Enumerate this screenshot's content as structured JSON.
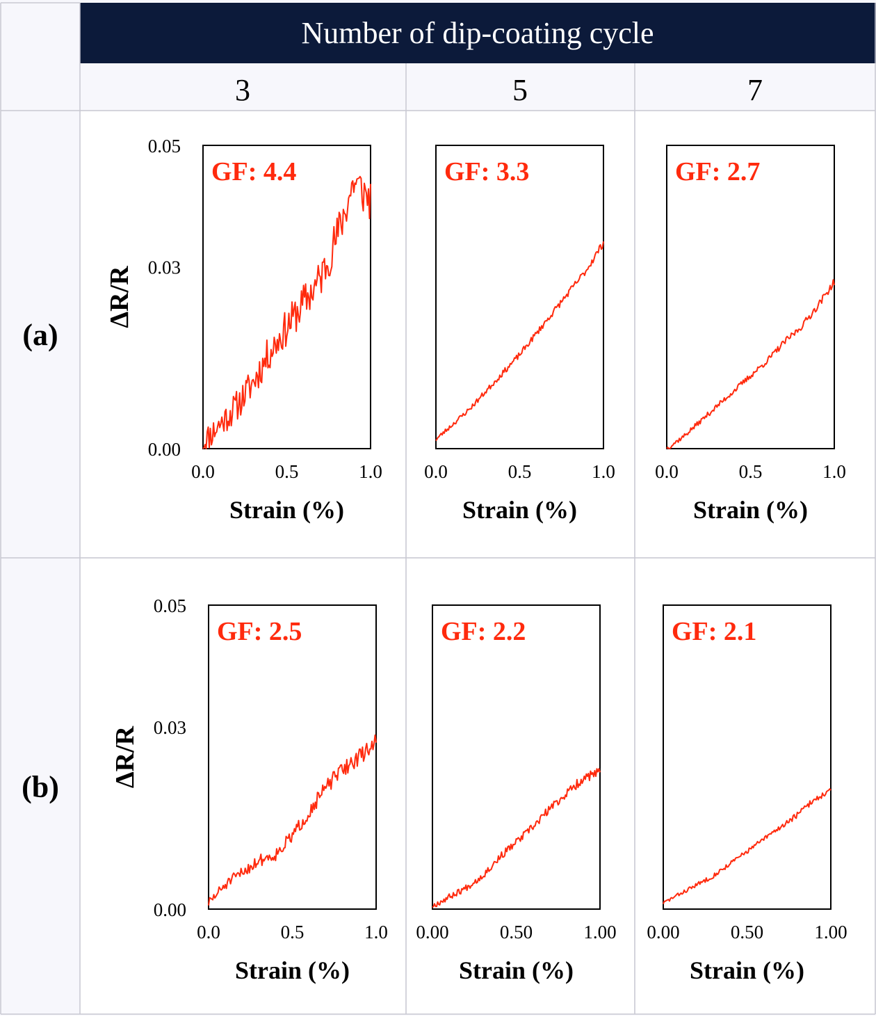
{
  "header": {
    "title": "Number of dip-coating cycle",
    "columns": [
      "3",
      "5",
      "7"
    ],
    "rows": [
      "(a)",
      "(b)"
    ]
  },
  "colors": {
    "header_band": "#0c1a3a",
    "cell_background": "#f7f7fc",
    "grid_line": "#c8c8d2",
    "series": "#ff2a0d",
    "gf_label": "#ff2a0d"
  },
  "chart_data": [
    {
      "type": "line",
      "row": "(a)",
      "column": "3",
      "annotation": "GF: 4.4",
      "xlabel": "Strain (%)",
      "ylabel": "ΔR/R",
      "xlim": [
        0,
        1
      ],
      "ylim": [
        0,
        0.05
      ],
      "xticks": [
        "0.0",
        "0.5",
        "1.0"
      ],
      "yticks": [
        "0.00",
        "0.03",
        "0.05"
      ],
      "noise": 0.0038,
      "seed": 11,
      "series": [
        {
          "x": [
            0,
            0.1,
            0.2,
            0.3,
            0.4,
            0.5,
            0.6,
            0.7,
            0.8,
            0.9,
            1.0
          ],
          "values": [
            0.001,
            0.004,
            0.007,
            0.011,
            0.016,
            0.02,
            0.024,
            0.028,
            0.035,
            0.044,
            0.041
          ]
        }
      ]
    },
    {
      "type": "line",
      "row": "(a)",
      "column": "5",
      "annotation": "GF: 3.3",
      "xlabel": "Strain (%)",
      "ylabel": "",
      "xlim": [
        0,
        1
      ],
      "ylim": [
        0,
        0.05
      ],
      "xticks": [
        "0.0",
        "0.5",
        "1.0"
      ],
      "yticks": [],
      "noise": 0.0006,
      "seed": 23,
      "series": [
        {
          "x": [
            0,
            0.1,
            0.2,
            0.3,
            0.4,
            0.5,
            0.6,
            0.7,
            0.8,
            0.9,
            1.0
          ],
          "values": [
            0.0015,
            0.004,
            0.0065,
            0.0095,
            0.0125,
            0.0155,
            0.019,
            0.0225,
            0.026,
            0.0295,
            0.034
          ]
        }
      ]
    },
    {
      "type": "line",
      "row": "(a)",
      "column": "7",
      "annotation": "GF: 2.7",
      "xlabel": "Strain (%)",
      "ylabel": "",
      "xlim": [
        0,
        1
      ],
      "ylim": [
        0,
        0.05
      ],
      "xticks": [
        "0.0",
        "0.5",
        "1.0"
      ],
      "yticks": [],
      "noise": 0.0006,
      "seed": 37,
      "series": [
        {
          "x": [
            0,
            0.1,
            0.2,
            0.3,
            0.4,
            0.5,
            0.6,
            0.7,
            0.8,
            0.9,
            1.0
          ],
          "values": [
            0.0,
            0.002,
            0.0045,
            0.007,
            0.0095,
            0.012,
            0.0145,
            0.0175,
            0.02,
            0.0235,
            0.0275
          ]
        }
      ]
    },
    {
      "type": "line",
      "row": "(b)",
      "column": "3",
      "annotation": "GF: 2.5",
      "xlabel": "Strain (%)",
      "ylabel": "ΔR/R",
      "xlim": [
        0,
        1
      ],
      "ylim": [
        0,
        0.05
      ],
      "xticks": [
        "0.0",
        "0.5",
        "1.0"
      ],
      "yticks": [
        "0.00",
        "0.03",
        "0.05"
      ],
      "noise": 0.0014,
      "seed": 51,
      "series": [
        {
          "x": [
            0,
            0.1,
            0.2,
            0.3,
            0.4,
            0.5,
            0.6,
            0.7,
            0.8,
            0.9,
            1.0
          ],
          "values": [
            0.001,
            0.004,
            0.006,
            0.008,
            0.009,
            0.012,
            0.016,
            0.02,
            0.023,
            0.025,
            0.0275
          ]
        }
      ]
    },
    {
      "type": "line",
      "row": "(b)",
      "column": "5",
      "annotation": "GF: 2.2",
      "xlabel": "Strain (%)",
      "ylabel": "",
      "xlim": [
        0,
        1
      ],
      "ylim": [
        0,
        0.05
      ],
      "xticks": [
        "0.00",
        "0.50",
        "1.00"
      ],
      "yticks": [],
      "noise": 0.0008,
      "seed": 67,
      "series": [
        {
          "x": [
            0,
            0.1,
            0.2,
            0.3,
            0.4,
            0.5,
            0.6,
            0.7,
            0.8,
            0.9,
            1.0
          ],
          "values": [
            0.0005,
            0.002,
            0.0035,
            0.0055,
            0.0085,
            0.011,
            0.0135,
            0.0165,
            0.019,
            0.0215,
            0.0225
          ]
        }
      ]
    },
    {
      "type": "line",
      "row": "(b)",
      "column": "7",
      "annotation": "GF: 2.1",
      "xlabel": "Strain (%)",
      "ylabel": "",
      "xlim": [
        0,
        1
      ],
      "ylim": [
        0,
        0.05
      ],
      "xticks": [
        "0.00",
        "0.50",
        "1.00"
      ],
      "yticks": [],
      "noise": 0.0005,
      "seed": 83,
      "series": [
        {
          "x": [
            0,
            0.1,
            0.2,
            0.3,
            0.4,
            0.5,
            0.6,
            0.7,
            0.8,
            0.9,
            1.0
          ],
          "values": [
            0.001,
            0.0025,
            0.004,
            0.0055,
            0.0075,
            0.0095,
            0.0115,
            0.0135,
            0.0155,
            0.018,
            0.0195
          ]
        }
      ]
    }
  ]
}
